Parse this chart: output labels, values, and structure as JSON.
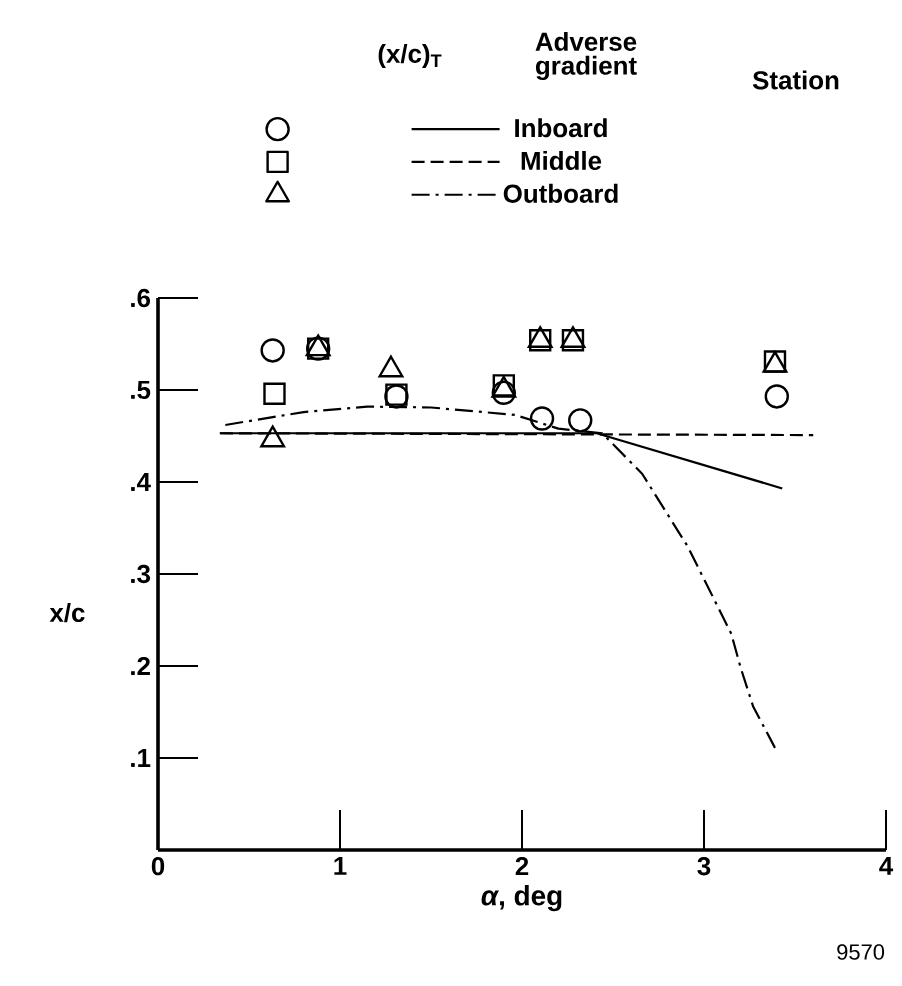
{
  "chart_data": {
    "type": "scatter",
    "xlabel": "*α*, deg",
    "ylabel": "x/c",
    "legend": "top",
    "legend_title": "Station",
    "annotations": [
      "(x/c)$_{T}$",
      "Adverse gradient",
      "9570"
    ],
    "xlim": [
      0,
      4
    ],
    "ylim": [
      0,
      0.6
    ],
    "xticks": [
      0,
      1,
      2,
      3,
      4
    ],
    "yticks": [
      {
        "value": 0.1,
        "label": ".1"
      },
      {
        "value": 0.2,
        "label": ".2"
      },
      {
        "value": 0.3,
        "label": ".3"
      },
      {
        "value": 0.4,
        "label": ".4"
      },
      {
        "value": 0.5,
        "label": ".5"
      },
      {
        "value": 0.6,
        "label": ".6"
      }
    ],
    "series": [
      {
        "type": "scatter",
        "marker": "circle",
        "color": "#000000",
        "x": [
          0.63,
          0.88,
          1.31,
          1.9,
          2.11,
          2.32,
          3.4
        ],
        "values": [
          0.543,
          0.545,
          0.493,
          0.497,
          0.469,
          0.467,
          0.493
        ]
      },
      {
        "type": "scatter",
        "marker": "square",
        "color": "#000000",
        "x": [
          0.64,
          0.88,
          1.31,
          1.9,
          2.1,
          2.28,
          3.39
        ],
        "values": [
          0.496,
          0.545,
          0.495,
          0.505,
          0.554,
          0.554,
          0.531
        ]
      },
      {
        "type": "scatter",
        "marker": "triangle",
        "color": "#000000",
        "x": [
          0.63,
          0.88,
          1.28,
          1.9,
          2.1,
          2.28,
          3.39
        ],
        "values": [
          0.446,
          0.545,
          0.522,
          0.5,
          0.554,
          0.554,
          0.527
        ]
      },
      {
        "name": "Inboard",
        "type": "line",
        "line_style": "solid",
        "color": "#000000",
        "x": [
          0.34,
          2.41,
          3.43
        ],
        "values": [
          0.453,
          0.453,
          0.393
        ]
      },
      {
        "name": "Middle",
        "type": "line",
        "line_style": "dashed",
        "color": "#000000",
        "x": [
          0.34,
          3.6
        ],
        "values": [
          0.453,
          0.451
        ]
      },
      {
        "name": "Outboard",
        "type": "line",
        "line_style": "dashdot",
        "color": "#000000",
        "x": [
          0.37,
          0.8,
          1.15,
          1.5,
          1.96,
          2.2,
          2.44,
          2.66,
          2.91,
          3.15,
          3.2,
          3.27,
          3.39
        ],
        "values": [
          0.462,
          0.476,
          0.482,
          0.481,
          0.473,
          0.458,
          0.453,
          0.409,
          0.33,
          0.235,
          0.199,
          0.156,
          0.111
        ]
      }
    ]
  }
}
